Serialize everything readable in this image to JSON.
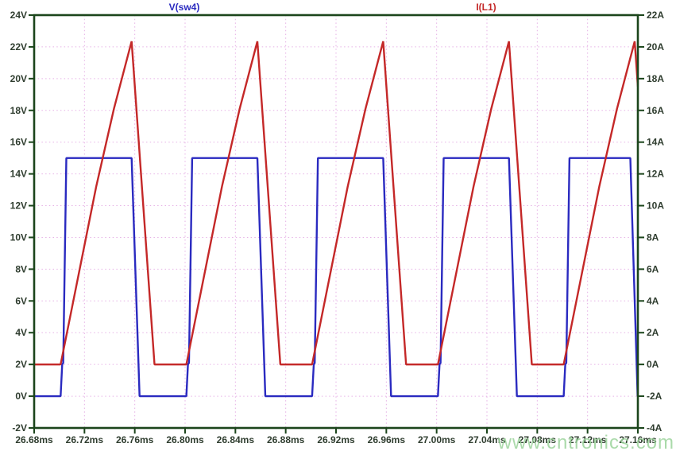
{
  "legend": {
    "voltage_label": "V(sw4)",
    "current_label": "I(L1)",
    "voltage_color": "#2a2ac0",
    "current_color": "#c42828"
  },
  "watermark": {
    "text": "www.cntronics.com",
    "color": "#9cd49c"
  },
  "chart_data": {
    "type": "line",
    "title": "",
    "description": "Switching converter waveforms: switch-node voltage V(sw4) (left axis) and inductor current I(L1) (right axis) vs time",
    "legend_position": "top",
    "x_axis": {
      "unit": "ms",
      "range": [
        26.68,
        27.16
      ],
      "tick_interval": 0.04,
      "tick_labels": [
        "26.68ms",
        "26.72ms",
        "26.76ms",
        "26.80ms",
        "26.84ms",
        "26.88ms",
        "26.92ms",
        "26.96ms",
        "27.00ms",
        "27.04ms",
        "27.08ms",
        "27.12ms",
        "27.16ms"
      ]
    },
    "y_left": {
      "unit": "V",
      "range": [
        -2,
        24
      ],
      "tick_interval": 2,
      "tick_labels": [
        "24V",
        "22V",
        "20V",
        "18V",
        "16V",
        "14V",
        "12V",
        "10V",
        "8V",
        "6V",
        "4V",
        "2V",
        "0V",
        "-2V"
      ]
    },
    "y_right": {
      "unit": "A",
      "range": [
        -4,
        22
      ],
      "tick_interval": 2,
      "tick_labels": [
        "22A",
        "20A",
        "18A",
        "16A",
        "14A",
        "12A",
        "10A",
        "8A",
        "6A",
        "4A",
        "2A",
        "0A",
        "-2A",
        "-4A"
      ]
    },
    "grid": {
      "on": true,
      "color": "#e6b2e6",
      "style": "dotted"
    },
    "frame_color": "#1b451b",
    "tick_label_color": "#2f3d2f",
    "series": [
      {
        "name": "V(sw4)",
        "axis": "left",
        "color": "#2a2ac0",
        "high_level_v": 15,
        "low_level_v": 0,
        "points": [
          [
            26.68,
            0
          ],
          [
            26.701,
            0
          ],
          [
            26.7023,
            2
          ],
          [
            26.7031,
            2.1
          ],
          [
            26.7056,
            15
          ],
          [
            26.7575,
            15
          ],
          [
            26.7638,
            0
          ],
          [
            26.801,
            0
          ],
          [
            26.8023,
            2
          ],
          [
            26.8031,
            2.1
          ],
          [
            26.8056,
            15
          ],
          [
            26.8575,
            15
          ],
          [
            26.8638,
            0
          ],
          [
            26.901,
            0
          ],
          [
            26.9023,
            2
          ],
          [
            26.9031,
            2.1
          ],
          [
            26.9056,
            15
          ],
          [
            26.9575,
            15
          ],
          [
            26.9638,
            0
          ],
          [
            27.001,
            0
          ],
          [
            27.0023,
            2
          ],
          [
            27.0031,
            2.1
          ],
          [
            27.0056,
            15
          ],
          [
            27.0575,
            15
          ],
          [
            27.0638,
            0
          ],
          [
            27.101,
            0
          ],
          [
            27.1023,
            2
          ],
          [
            27.1031,
            2.1
          ],
          [
            27.1056,
            15
          ],
          [
            27.154,
            15
          ],
          [
            27.1598,
            0
          ],
          [
            27.16,
            0
          ]
        ]
      },
      {
        "name": "I(L1)",
        "axis": "right",
        "color": "#c42828",
        "peak_a": 20.35,
        "valley_a": 0,
        "points": [
          [
            26.68,
            0
          ],
          [
            26.701,
            0
          ],
          [
            26.7293,
            11.2
          ],
          [
            26.7434,
            16.1
          ],
          [
            26.7575,
            20.35
          ],
          [
            26.7757,
            0
          ],
          [
            26.801,
            0
          ],
          [
            26.8293,
            11.2
          ],
          [
            26.8434,
            16.1
          ],
          [
            26.8575,
            20.35
          ],
          [
            26.8757,
            0
          ],
          [
            26.901,
            0
          ],
          [
            26.9293,
            11.2
          ],
          [
            26.9434,
            16.1
          ],
          [
            26.9575,
            20.35
          ],
          [
            26.9757,
            0
          ],
          [
            27.001,
            0
          ],
          [
            27.0293,
            11.2
          ],
          [
            27.0434,
            16.1
          ],
          [
            27.0575,
            20.35
          ],
          [
            27.0757,
            0
          ],
          [
            27.101,
            0
          ],
          [
            27.1293,
            11.2
          ],
          [
            27.1434,
            16.1
          ],
          [
            27.1575,
            20.35
          ],
          [
            27.16,
            17.5
          ]
        ]
      }
    ]
  }
}
